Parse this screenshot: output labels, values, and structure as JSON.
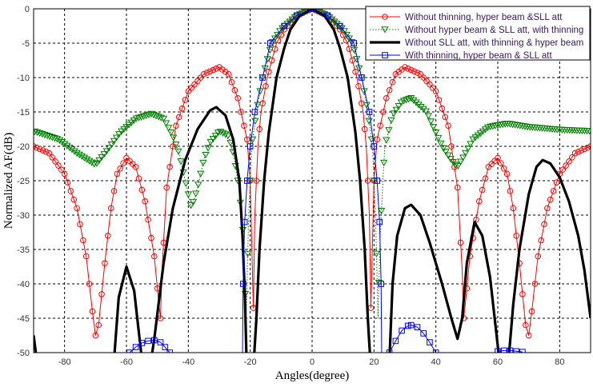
{
  "chart_data": {
    "type": "line",
    "title": "",
    "xlabel": "Angles(degree)",
    "ylabel": "Normalized AF(dB)",
    "xlim": [
      -90,
      90
    ],
    "ylim": [
      -50,
      0
    ],
    "xticks": [
      -80,
      -60,
      -40,
      -20,
      0,
      20,
      40,
      60,
      80
    ],
    "yticks": [
      0,
      -5,
      -10,
      -15,
      -20,
      -25,
      -30,
      -35,
      -40,
      -45,
      -50
    ],
    "grid": true,
    "legend_position": "top-right",
    "series": [
      {
        "name": "Without thinning, hyper beam &SLL att",
        "color": "#ff0000",
        "marker": "circle",
        "line": "solid",
        "points": [
          [
            -90,
            -20
          ],
          [
            -85,
            -21
          ],
          [
            -80,
            -24
          ],
          [
            -76,
            -29
          ],
          [
            -73,
            -36
          ],
          [
            -71,
            -44
          ],
          [
            -70,
            -47.5
          ],
          [
            -69,
            -46
          ],
          [
            -67,
            -37
          ],
          [
            -65,
            -29
          ],
          [
            -63,
            -24
          ],
          [
            -60,
            -21.7
          ],
          [
            -57,
            -23
          ],
          [
            -54,
            -28
          ],
          [
            -51,
            -36
          ],
          [
            -49.5,
            -43
          ],
          [
            -49,
            -45
          ],
          [
            -48.5,
            -38
          ],
          [
            -47,
            -26
          ],
          [
            -44,
            -17
          ],
          [
            -40,
            -12
          ],
          [
            -35,
            -9.5
          ],
          [
            -30,
            -8.5
          ],
          [
            -27,
            -9.5
          ],
          [
            -24,
            -13
          ],
          [
            -21,
            -19
          ],
          [
            -20,
            -25
          ],
          [
            -19,
            -43.5
          ],
          [
            -18.5,
            -30
          ],
          [
            -17.5,
            -20
          ],
          [
            -16.5,
            -15
          ],
          [
            -14.5,
            -10
          ],
          [
            -11.5,
            -5
          ],
          [
            -9,
            -3
          ],
          [
            -5,
            -1
          ],
          [
            0,
            0
          ],
          [
            5,
            -1
          ],
          [
            9,
            -3
          ],
          [
            11.5,
            -5
          ],
          [
            14.5,
            -10
          ],
          [
            16.5,
            -15
          ],
          [
            17.5,
            -20
          ],
          [
            18.5,
            -30
          ],
          [
            19,
            -43.5
          ],
          [
            20,
            -25
          ],
          [
            21,
            -19
          ],
          [
            24,
            -13
          ],
          [
            27,
            -9.5
          ],
          [
            30,
            -8.5
          ],
          [
            35,
            -9.5
          ],
          [
            40,
            -12
          ],
          [
            44,
            -17
          ],
          [
            47,
            -26
          ],
          [
            48.5,
            -38
          ],
          [
            49,
            -45
          ],
          [
            49.5,
            -43
          ],
          [
            51,
            -36
          ],
          [
            54,
            -28
          ],
          [
            57,
            -23
          ],
          [
            60,
            -21.7
          ],
          [
            63,
            -24
          ],
          [
            65,
            -29
          ],
          [
            67,
            -37
          ],
          [
            69,
            -46
          ],
          [
            70,
            -47.5
          ],
          [
            71,
            -44
          ],
          [
            73,
            -36
          ],
          [
            76,
            -29
          ],
          [
            80,
            -24
          ],
          [
            85,
            -21
          ],
          [
            90,
            -20
          ]
        ]
      },
      {
        "name": "Without hyper beam & SLL att, with thinning",
        "color": "#008000",
        "marker": "triangle-down",
        "line": "dotted",
        "points": [
          [
            -90,
            -17.8
          ],
          [
            -82,
            -19
          ],
          [
            -76,
            -21
          ],
          [
            -70,
            -22.7
          ],
          [
            -66,
            -20.5
          ],
          [
            -62,
            -18
          ],
          [
            -57,
            -16
          ],
          [
            -52,
            -15.3
          ],
          [
            -48,
            -16
          ],
          [
            -45,
            -18.5
          ],
          [
            -43,
            -21
          ],
          [
            -41,
            -25
          ],
          [
            -39,
            -29
          ],
          [
            -37,
            -26
          ],
          [
            -35,
            -22
          ],
          [
            -33,
            -19.5
          ],
          [
            -30,
            -17.8
          ],
          [
            -27,
            -18.5
          ],
          [
            -25.5,
            -21
          ],
          [
            -24,
            -25
          ],
          [
            -22.5,
            -31
          ],
          [
            -21.3,
            -45
          ],
          [
            -20.5,
            -30
          ],
          [
            -19.5,
            -20
          ],
          [
            -18,
            -15
          ],
          [
            -16,
            -10
          ],
          [
            -13,
            -5
          ],
          [
            -10,
            -3
          ],
          [
            -5,
            -1
          ],
          [
            0,
            0
          ],
          [
            5,
            -1
          ],
          [
            10,
            -3
          ],
          [
            13,
            -5
          ],
          [
            16,
            -10
          ],
          [
            18,
            -15
          ],
          [
            19.5,
            -20
          ],
          [
            20.5,
            -30
          ],
          [
            21.3,
            -45
          ],
          [
            22,
            -33
          ],
          [
            23,
            -24
          ],
          [
            23.5,
            -20
          ],
          [
            26,
            -15.5
          ],
          [
            29,
            -13.5
          ],
          [
            32,
            -13
          ],
          [
            37,
            -15
          ],
          [
            42,
            -20
          ],
          [
            45,
            -22
          ],
          [
            47,
            -23
          ],
          [
            49,
            -21.5
          ],
          [
            52,
            -19
          ],
          [
            57,
            -17.2
          ],
          [
            63,
            -16.7
          ],
          [
            70,
            -17.2
          ],
          [
            80,
            -17.6
          ],
          [
            90,
            -17.8
          ]
        ]
      },
      {
        "name": "Without SLL att, with thinning & hyper beam",
        "color": "#000000",
        "marker": "none",
        "line": "solid-thick",
        "points": [
          [
            -90,
            -47.5
          ],
          [
            -89,
            -52
          ],
          [
            -64,
            -55
          ],
          [
            -62.5,
            -42
          ],
          [
            -60,
            -37.5
          ],
          [
            -57.5,
            -41
          ],
          [
            -55.5,
            -49
          ],
          [
            -55,
            -55
          ],
          [
            -52,
            -55
          ],
          [
            -51,
            -48
          ],
          [
            -48,
            -37
          ],
          [
            -45,
            -29
          ],
          [
            -41,
            -22
          ],
          [
            -37,
            -17.5
          ],
          [
            -33,
            -14.8
          ],
          [
            -31,
            -14.3
          ],
          [
            -28,
            -15.5
          ],
          [
            -25.5,
            -19
          ],
          [
            -23.5,
            -25
          ],
          [
            -22.5,
            -33
          ],
          [
            -21.7,
            -42
          ],
          [
            -21.2,
            -55
          ],
          [
            -18.8,
            -55
          ],
          [
            -18,
            -45
          ],
          [
            -17,
            -35
          ],
          [
            -15.5,
            -25
          ],
          [
            -14,
            -18
          ],
          [
            -11.5,
            -10
          ],
          [
            -9,
            -5.7
          ],
          [
            -7,
            -3
          ],
          [
            -4,
            -1
          ],
          [
            0,
            0
          ],
          [
            4,
            -1
          ],
          [
            7,
            -3
          ],
          [
            9,
            -5.7
          ],
          [
            11.5,
            -10
          ],
          [
            14,
            -18
          ],
          [
            15.5,
            -25
          ],
          [
            17,
            -35
          ],
          [
            18,
            -45
          ],
          [
            18.8,
            -55
          ],
          [
            25,
            -55
          ],
          [
            26,
            -40
          ],
          [
            27.5,
            -33
          ],
          [
            30,
            -29
          ],
          [
            32,
            -28.5
          ],
          [
            35,
            -30
          ],
          [
            38,
            -34
          ],
          [
            42,
            -40
          ],
          [
            45,
            -45
          ],
          [
            47,
            -48
          ],
          [
            48.5,
            -45
          ],
          [
            50,
            -37
          ],
          [
            52.5,
            -31
          ],
          [
            55,
            -33
          ],
          [
            57.5,
            -39
          ],
          [
            59.5,
            -47
          ],
          [
            60.5,
            -55
          ],
          [
            63.5,
            -55
          ],
          [
            65,
            -43
          ],
          [
            67,
            -35
          ],
          [
            70,
            -27
          ],
          [
            72.5,
            -23
          ],
          [
            74.5,
            -22
          ],
          [
            77,
            -22.5
          ],
          [
            80,
            -24.5
          ],
          [
            83,
            -28
          ],
          [
            86,
            -33
          ],
          [
            88,
            -38
          ],
          [
            90,
            -45
          ]
        ]
      },
      {
        "name": "With thinning, hyper beam & SLL att",
        "color": "#0000ff",
        "marker": "square",
        "line": "solid",
        "segments": [
          [
            [
              -59,
              -50
            ],
            [
              -57,
              -49.2
            ],
            [
              -55,
              -48.6
            ],
            [
              -53,
              -48.3
            ],
            [
              -51,
              -48.2
            ],
            [
              -49,
              -48.5
            ],
            [
              -47.5,
              -49.2
            ],
            [
              -46,
              -50
            ]
          ],
          [
            [
              -22.5,
              -60
            ],
            [
              -22.3,
              -40
            ],
            [
              -21.8,
              -31
            ],
            [
              -21,
              -25
            ],
            [
              -20,
              -20
            ],
            [
              -18.5,
              -15
            ],
            [
              -16,
              -10
            ],
            [
              -13.5,
              -5
            ],
            [
              -9,
              -2.5
            ],
            [
              -5,
              -1
            ],
            [
              0,
              0
            ],
            [
              5,
              -1
            ],
            [
              9,
              -2.5
            ],
            [
              13.5,
              -5
            ],
            [
              16,
              -10
            ],
            [
              18.5,
              -15
            ],
            [
              20,
              -20
            ],
            [
              21,
              -25
            ],
            [
              21.8,
              -31
            ],
            [
              22.3,
              -40
            ],
            [
              22.5,
              -60
            ]
          ],
          [
            [
              25,
              -50
            ],
            [
              27,
              -48.3
            ],
            [
              29,
              -46.8
            ],
            [
              31,
              -46.1
            ],
            [
              32,
              -46
            ],
            [
              34,
              -46.3
            ],
            [
              36,
              -47.2
            ],
            [
              38,
              -48.5
            ],
            [
              40,
              -50
            ]
          ],
          [
            [
              60,
              -49.8
            ],
            [
              62,
              -49.7
            ],
            [
              64,
              -49.7
            ],
            [
              66,
              -49.8
            ],
            [
              68,
              -49.9
            ]
          ]
        ]
      }
    ]
  }
}
